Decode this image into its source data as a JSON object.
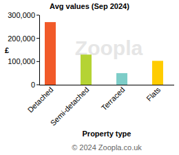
{
  "chart_data": {
    "type": "bar",
    "title": "Avg values (Sep 2024)",
    "x_label": "Property type",
    "y_label": "£",
    "categories": [
      "Detached",
      "Semi-detached",
      "Terraced",
      "Flats"
    ],
    "values": [
      270000,
      130000,
      50000,
      103000
    ],
    "colors": [
      "#f15a29",
      "#b5d334",
      "#7dcdc8",
      "#ffcc00"
    ],
    "ylim": [
      0,
      300000
    ],
    "yticks": [
      0,
      {
        "value": 100000,
        "label": "100,000"
      },
      {
        "value": 200000,
        "label": "200,000"
      },
      {
        "value": 300000,
        "label": "300,000"
      }
    ],
    "grid": false,
    "watermark": "Zoopla",
    "source": "© 2024 Zoopla.co.uk"
  }
}
